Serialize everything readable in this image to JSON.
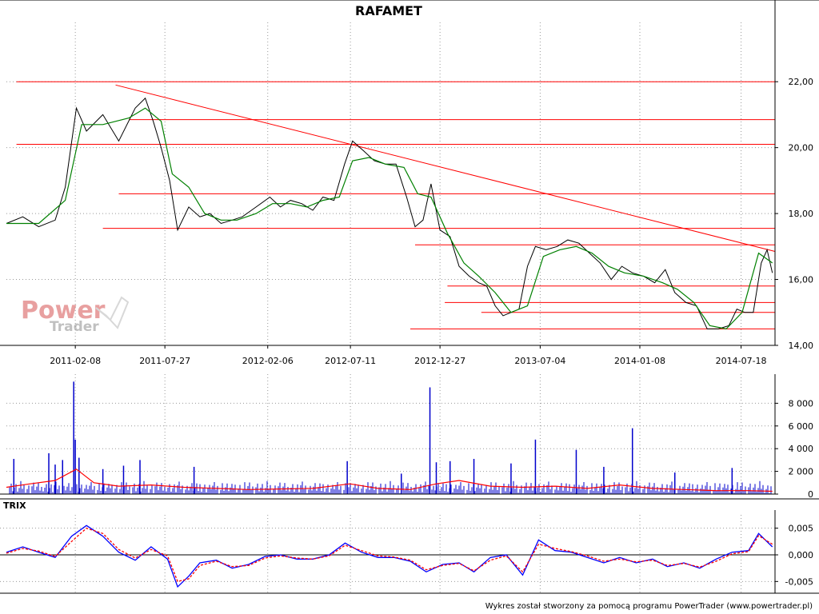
{
  "footer": "Wykres został stworzony za pomocą programu PowerTrader (www.powertrader.pl)",
  "watermark": {
    "line1": "Power",
    "line2": "Trader"
  },
  "colors": {
    "price": "#000000",
    "average": "#008000",
    "levels": "#ff0000",
    "trend": "#ff0000",
    "volume": "#0000cc",
    "volume_avg": "#ff0000",
    "trix": "#0000ff",
    "trix_signal": "#ff0000",
    "grid": "#999999",
    "watermark_red": "#e8a0a0",
    "watermark_gray": "#c0c0c0"
  },
  "chart_data": [
    {
      "id": "price",
      "type": "line",
      "title": "RAFAMET",
      "x_ticks": [
        "2011-02-08",
        "2011-07-27",
        "2012-02-06",
        "2012-07-11",
        "2012-12-27",
        "2013-07-04",
        "2014-01-08",
        "2014-07-18"
      ],
      "x_range": [
        "2010-10-01",
        "2014-09-20"
      ],
      "y_ticks": [
        "14,00",
        "16,00",
        "18,00",
        "20,00",
        "22,00"
      ],
      "ylim": [
        14,
        23.8
      ],
      "grid": true,
      "horizontal_levels": [
        {
          "y": 22.0,
          "from": "2010-10-20",
          "to": "2014-09-20"
        },
        {
          "y": 20.85,
          "from": "2011-05-20",
          "to": "2014-09-20"
        },
        {
          "y": 20.1,
          "from": "2010-10-20",
          "to": "2014-09-20"
        },
        {
          "y": 18.6,
          "from": "2011-05-01",
          "to": "2014-09-20"
        },
        {
          "y": 17.55,
          "from": "2011-04-01",
          "to": "2014-09-20"
        },
        {
          "y": 17.05,
          "from": "2012-11-10",
          "to": "2014-09-20"
        },
        {
          "y": 15.8,
          "from": "2013-01-10",
          "to": "2014-09-20"
        },
        {
          "y": 15.3,
          "from": "2013-01-05",
          "to": "2014-09-20"
        },
        {
          "y": 15.0,
          "from": "2013-03-15",
          "to": "2014-09-20"
        },
        {
          "y": 14.5,
          "from": "2012-11-01",
          "to": "2014-09-20"
        }
      ],
      "trendline": {
        "from": [
          "2011-04-25",
          21.9
        ],
        "to": [
          "2014-09-20",
          16.85
        ]
      },
      "series": [
        {
          "role": "price",
          "x": [
            "2010-10-01",
            "2010-11-01",
            "2010-12-01",
            "2011-01-01",
            "2011-01-20",
            "2011-02-10",
            "2011-03-01",
            "2011-04-01",
            "2011-05-01",
            "2011-06-01",
            "2011-06-20",
            "2011-07-05",
            "2011-07-20",
            "2011-08-05",
            "2011-08-20",
            "2011-09-10",
            "2011-10-01",
            "2011-10-20",
            "2011-11-10",
            "2011-12-01",
            "2011-12-20",
            "2012-01-15",
            "2012-02-10",
            "2012-03-01",
            "2012-03-20",
            "2012-04-10",
            "2012-05-01",
            "2012-05-20",
            "2012-06-10",
            "2012-06-30",
            "2012-07-15",
            "2012-08-05",
            "2012-08-25",
            "2012-09-15",
            "2012-10-05",
            "2012-10-25",
            "2012-11-10",
            "2012-11-25",
            "2012-12-10",
            "2012-12-27",
            "2013-01-15",
            "2013-02-01",
            "2013-02-20",
            "2013-03-10",
            "2013-03-25",
            "2013-04-10",
            "2013-04-25",
            "2013-05-10",
            "2013-05-25",
            "2013-06-10",
            "2013-06-25",
            "2013-07-15",
            "2013-08-05",
            "2013-08-25",
            "2013-09-15",
            "2013-10-05",
            "2013-10-25",
            "2013-11-15",
            "2013-12-05",
            "2013-12-25",
            "2014-01-15",
            "2014-02-05",
            "2014-02-25",
            "2014-03-15",
            "2014-04-05",
            "2014-04-25",
            "2014-05-15",
            "2014-06-05",
            "2014-06-25",
            "2014-07-10",
            "2014-07-25",
            "2014-08-10",
            "2014-08-25",
            "2014-09-05",
            "2014-09-15"
          ],
          "values": [
            17.7,
            17.9,
            17.6,
            17.8,
            18.8,
            21.2,
            20.5,
            21.0,
            20.2,
            21.2,
            21.5,
            20.8,
            20.0,
            19.0,
            17.5,
            18.2,
            17.9,
            18.0,
            17.7,
            17.8,
            17.9,
            18.2,
            18.5,
            18.2,
            18.4,
            18.3,
            18.1,
            18.5,
            18.4,
            19.5,
            20.2,
            19.9,
            19.6,
            19.5,
            19.5,
            18.5,
            17.6,
            17.8,
            18.9,
            17.5,
            17.3,
            16.4,
            16.1,
            15.9,
            15.8,
            15.2,
            14.9,
            15.0,
            15.1,
            16.4,
            17.0,
            16.9,
            17.0,
            17.2,
            17.1,
            16.8,
            16.5,
            16.0,
            16.4,
            16.2,
            16.1,
            15.9,
            16.3,
            15.6,
            15.3,
            15.2,
            14.5,
            14.5,
            14.6,
            15.1,
            15.0,
            15.0,
            16.5,
            16.9,
            16.2
          ]
        },
        {
          "role": "average",
          "x": [
            "2010-10-01",
            "2010-12-01",
            "2011-01-20",
            "2011-02-20",
            "2011-04-01",
            "2011-05-20",
            "2011-06-20",
            "2011-07-20",
            "2011-08-10",
            "2011-09-10",
            "2011-10-10",
            "2011-11-10",
            "2011-12-10",
            "2012-01-15",
            "2012-02-15",
            "2012-03-20",
            "2012-04-20",
            "2012-05-20",
            "2012-06-20",
            "2012-07-15",
            "2012-08-15",
            "2012-09-15",
            "2012-10-20",
            "2012-11-15",
            "2012-12-10",
            "2013-01-10",
            "2013-02-10",
            "2013-03-10",
            "2013-04-10",
            "2013-05-10",
            "2013-06-10",
            "2013-07-10",
            "2013-08-10",
            "2013-09-10",
            "2013-10-10",
            "2013-11-10",
            "2013-12-10",
            "2014-01-15",
            "2014-02-20",
            "2014-03-20",
            "2014-04-20",
            "2014-05-20",
            "2014-06-20",
            "2014-07-20",
            "2014-08-20",
            "2014-09-15"
          ],
          "values": [
            17.7,
            17.7,
            18.4,
            20.7,
            20.7,
            20.9,
            21.2,
            20.8,
            19.2,
            18.8,
            18.0,
            17.8,
            17.8,
            18.0,
            18.3,
            18.3,
            18.2,
            18.4,
            18.5,
            19.6,
            19.7,
            19.5,
            19.4,
            18.6,
            18.5,
            17.4,
            16.5,
            16.1,
            15.6,
            15.0,
            15.2,
            16.7,
            16.9,
            17.0,
            16.8,
            16.4,
            16.2,
            16.1,
            15.9,
            15.7,
            15.3,
            14.6,
            14.5,
            15.0,
            16.8,
            16.5
          ]
        }
      ]
    },
    {
      "id": "volume",
      "type": "bar",
      "y_ticks": [
        "0",
        "2 000",
        "4 000",
        "6 000",
        "8 000"
      ],
      "ylim": [
        0,
        10000
      ],
      "grid": true,
      "spikes": [
        {
          "x": "2011-02-05",
          "value": 9900
        },
        {
          "x": "2011-02-08",
          "value": 4800
        },
        {
          "x": "2010-12-20",
          "value": 3600
        },
        {
          "x": "2011-01-15",
          "value": 3000
        },
        {
          "x": "2011-02-15",
          "value": 3200
        },
        {
          "x": "2011-01-01",
          "value": 2600
        },
        {
          "x": "2011-06-10",
          "value": 3000
        },
        {
          "x": "2011-05-10",
          "value": 2500
        },
        {
          "x": "2011-04-01",
          "value": 2200
        },
        {
          "x": "2010-10-15",
          "value": 3100
        },
        {
          "x": "2011-09-20",
          "value": 2400
        },
        {
          "x": "2012-07-05",
          "value": 2900
        },
        {
          "x": "2012-12-08",
          "value": 9400
        },
        {
          "x": "2012-12-20",
          "value": 2800
        },
        {
          "x": "2013-01-15",
          "value": 2900
        },
        {
          "x": "2013-03-01",
          "value": 3100
        },
        {
          "x": "2013-05-10",
          "value": 2700
        },
        {
          "x": "2013-06-25",
          "value": 4800
        },
        {
          "x": "2013-09-10",
          "value": 3900
        },
        {
          "x": "2013-12-25",
          "value": 5800
        },
        {
          "x": "2013-11-01",
          "value": 2400
        },
        {
          "x": "2014-07-01",
          "value": 2300
        },
        {
          "x": "2012-10-15",
          "value": 1800
        },
        {
          "x": "2014-03-15",
          "value": 1900
        }
      ],
      "base_volume_note": "remaining daily volume bars under ~1 000",
      "series": [
        {
          "role": "volume_avg",
          "x": [
            "2010-10-01",
            "2010-11-15",
            "2011-01-01",
            "2011-02-10",
            "2011-03-15",
            "2011-05-01",
            "2011-07-01",
            "2011-09-01",
            "2011-11-01",
            "2012-01-01",
            "2012-03-01",
            "2012-05-01",
            "2012-07-10",
            "2012-09-01",
            "2012-11-01",
            "2012-12-20",
            "2013-02-01",
            "2013-04-01",
            "2013-06-01",
            "2013-08-01",
            "2013-10-01",
            "2013-12-01",
            "2014-02-01",
            "2014-04-01",
            "2014-06-01",
            "2014-08-01",
            "2014-09-15"
          ],
          "values": [
            600,
            900,
            1200,
            2200,
            1000,
            700,
            800,
            600,
            500,
            400,
            450,
            500,
            900,
            500,
            400,
            900,
            1200,
            700,
            600,
            700,
            500,
            800,
            500,
            400,
            300,
            300,
            250
          ]
        }
      ]
    },
    {
      "id": "trix",
      "type": "line",
      "title": "TRIX",
      "y_ticks": [
        "-0,005",
        "0,000",
        "0,005"
      ],
      "ylim": [
        -0.0072,
        0.0075
      ],
      "grid": true,
      "series": [
        {
          "role": "trix",
          "x": [
            "2010-10-01",
            "2010-11-01",
            "2010-12-01",
            "2011-01-01",
            "2011-02-01",
            "2011-03-01",
            "2011-04-01",
            "2011-05-01",
            "2011-06-01",
            "2011-07-01",
            "2011-08-01",
            "2011-08-20",
            "2011-09-10",
            "2011-10-01",
            "2011-11-01",
            "2011-12-01",
            "2012-01-01",
            "2012-02-01",
            "2012-03-01",
            "2012-04-01",
            "2012-05-01",
            "2012-06-01",
            "2012-07-01",
            "2012-08-01",
            "2012-09-01",
            "2012-10-01",
            "2012-11-01",
            "2012-12-01",
            "2013-01-01",
            "2013-02-01",
            "2013-03-01",
            "2013-04-01",
            "2013-05-01",
            "2013-06-01",
            "2013-07-01",
            "2013-08-01",
            "2013-09-01",
            "2013-10-01",
            "2013-11-01",
            "2013-12-01",
            "2014-01-01",
            "2014-02-01",
            "2014-03-01",
            "2014-04-01",
            "2014-05-01",
            "2014-06-01",
            "2014-07-01",
            "2014-08-01",
            "2014-08-20",
            "2014-09-15"
          ],
          "values": [
            0.0005,
            0.0015,
            0.0005,
            -0.0005,
            0.0035,
            0.0055,
            0.0035,
            0.0005,
            -0.001,
            0.0015,
            -0.0008,
            -0.006,
            -0.004,
            -0.0015,
            -0.001,
            -0.0025,
            -0.0018,
            -0.0003,
            0.0,
            -0.0008,
            -0.0008,
            0.0,
            0.0022,
            0.0005,
            -0.0005,
            -0.0005,
            -0.0012,
            -0.0032,
            -0.0018,
            -0.0015,
            -0.0032,
            -0.0005,
            0.0,
            -0.0038,
            0.0028,
            0.0008,
            0.0005,
            -0.0005,
            -0.0015,
            -0.0005,
            -0.0015,
            -0.0008,
            -0.0022,
            -0.0015,
            -0.0025,
            -0.0008,
            0.0005,
            0.0008,
            0.004,
            0.0015
          ]
        },
        {
          "role": "signal",
          "x": [
            "2010-10-01",
            "2010-11-01",
            "2010-12-01",
            "2011-01-01",
            "2011-02-01",
            "2011-03-01",
            "2011-04-01",
            "2011-05-01",
            "2011-06-01",
            "2011-07-01",
            "2011-08-01",
            "2011-08-20",
            "2011-09-10",
            "2011-10-01",
            "2011-11-01",
            "2011-12-01",
            "2012-01-01",
            "2012-02-01",
            "2012-03-01",
            "2012-04-01",
            "2012-05-01",
            "2012-06-01",
            "2012-07-01",
            "2012-08-01",
            "2012-09-01",
            "2012-10-01",
            "2012-11-01",
            "2012-12-01",
            "2013-01-01",
            "2013-02-01",
            "2013-03-01",
            "2013-04-01",
            "2013-05-01",
            "2013-06-01",
            "2013-07-01",
            "2013-08-01",
            "2013-09-01",
            "2013-10-01",
            "2013-11-01",
            "2013-12-01",
            "2014-01-01",
            "2014-02-01",
            "2014-03-01",
            "2014-04-01",
            "2014-05-01",
            "2014-06-01",
            "2014-07-01",
            "2014-08-01",
            "2014-08-20",
            "2014-09-15"
          ],
          "values": [
            0.0003,
            0.0012,
            0.0007,
            -0.0003,
            0.0025,
            0.005,
            0.004,
            0.001,
            -0.0006,
            0.001,
            -0.0002,
            -0.005,
            -0.0045,
            -0.002,
            -0.0012,
            -0.0022,
            -0.002,
            -0.0006,
            -0.0002,
            -0.0006,
            -0.0008,
            -0.0002,
            0.0018,
            0.0008,
            -0.0002,
            -0.0004,
            -0.001,
            -0.0028,
            -0.002,
            -0.0016,
            -0.003,
            -0.001,
            -0.0002,
            -0.0032,
            0.002,
            0.0012,
            0.0006,
            -0.0002,
            -0.0012,
            -0.0008,
            -0.0013,
            -0.001,
            -0.002,
            -0.0016,
            -0.0023,
            -0.0012,
            0.0002,
            0.0006,
            0.0036,
            0.002
          ]
        }
      ]
    }
  ]
}
